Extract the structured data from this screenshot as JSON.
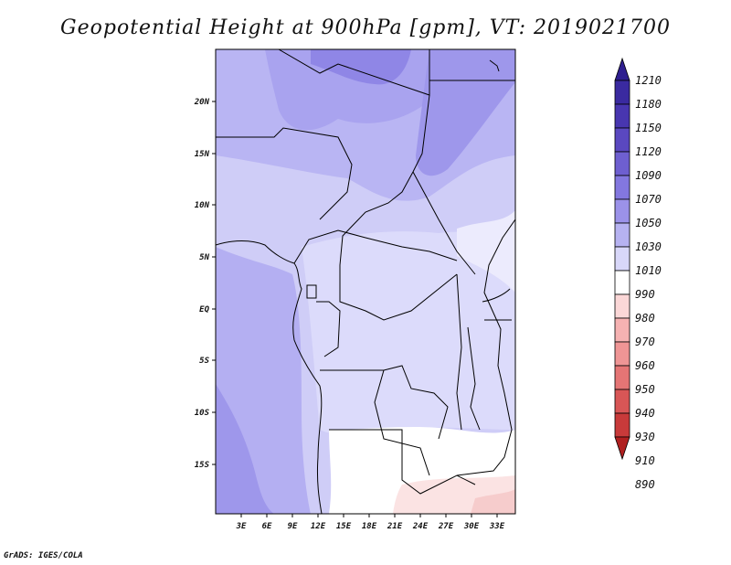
{
  "title": "Geopotential Height at 900hPa [gpm], VT: 2019021700",
  "footer": "GrADS: IGES/COLA",
  "map": {
    "lat_labels": [
      "20N",
      "15N",
      "10N",
      "5N",
      "EQ",
      "5S",
      "10S",
      "15S"
    ],
    "lon_labels": [
      "3E",
      "6E",
      "9E",
      "12E",
      "15E",
      "18E",
      "21E",
      "24E",
      "27E",
      "30E",
      "33E"
    ]
  },
  "colorbar": {
    "levels": [
      "1210",
      "1180",
      "1150",
      "1120",
      "1090",
      "1070",
      "1050",
      "1030",
      "1010",
      "990",
      "980",
      "970",
      "960",
      "950",
      "940",
      "930",
      "910",
      "890"
    ],
    "colors": [
      "#2e1e8f",
      "#3a2aa0",
      "#4836b0",
      "#5a48c0",
      "#6e5fd0",
      "#8377df",
      "#9b92e9",
      "#b6b2f1",
      "#d8d7f9",
      "#ffffff",
      "#fbd7d7",
      "#f6b2b2",
      "#ef9595",
      "#e57575",
      "#d85656",
      "#c83a3a",
      "#b02020"
    ]
  },
  "chart_data": {
    "type": "heatmap",
    "variable": "Geopotential Height at 900hPa [gpm]",
    "valid_time": "2019021700",
    "x_axis": {
      "ticks": [
        "3E",
        "6E",
        "9E",
        "12E",
        "15E",
        "18E",
        "21E",
        "24E",
        "27E",
        "30E",
        "33E"
      ]
    },
    "y_axis": {
      "ticks": [
        "20N",
        "15N",
        "10N",
        "5N",
        "EQ",
        "5S",
        "10S",
        "15S"
      ]
    },
    "legend_levels": [
      1210,
      1180,
      1150,
      1120,
      1090,
      1070,
      1050,
      1030,
      1010,
      990,
      980,
      970,
      960,
      950,
      940,
      930,
      910,
      890
    ]
  }
}
